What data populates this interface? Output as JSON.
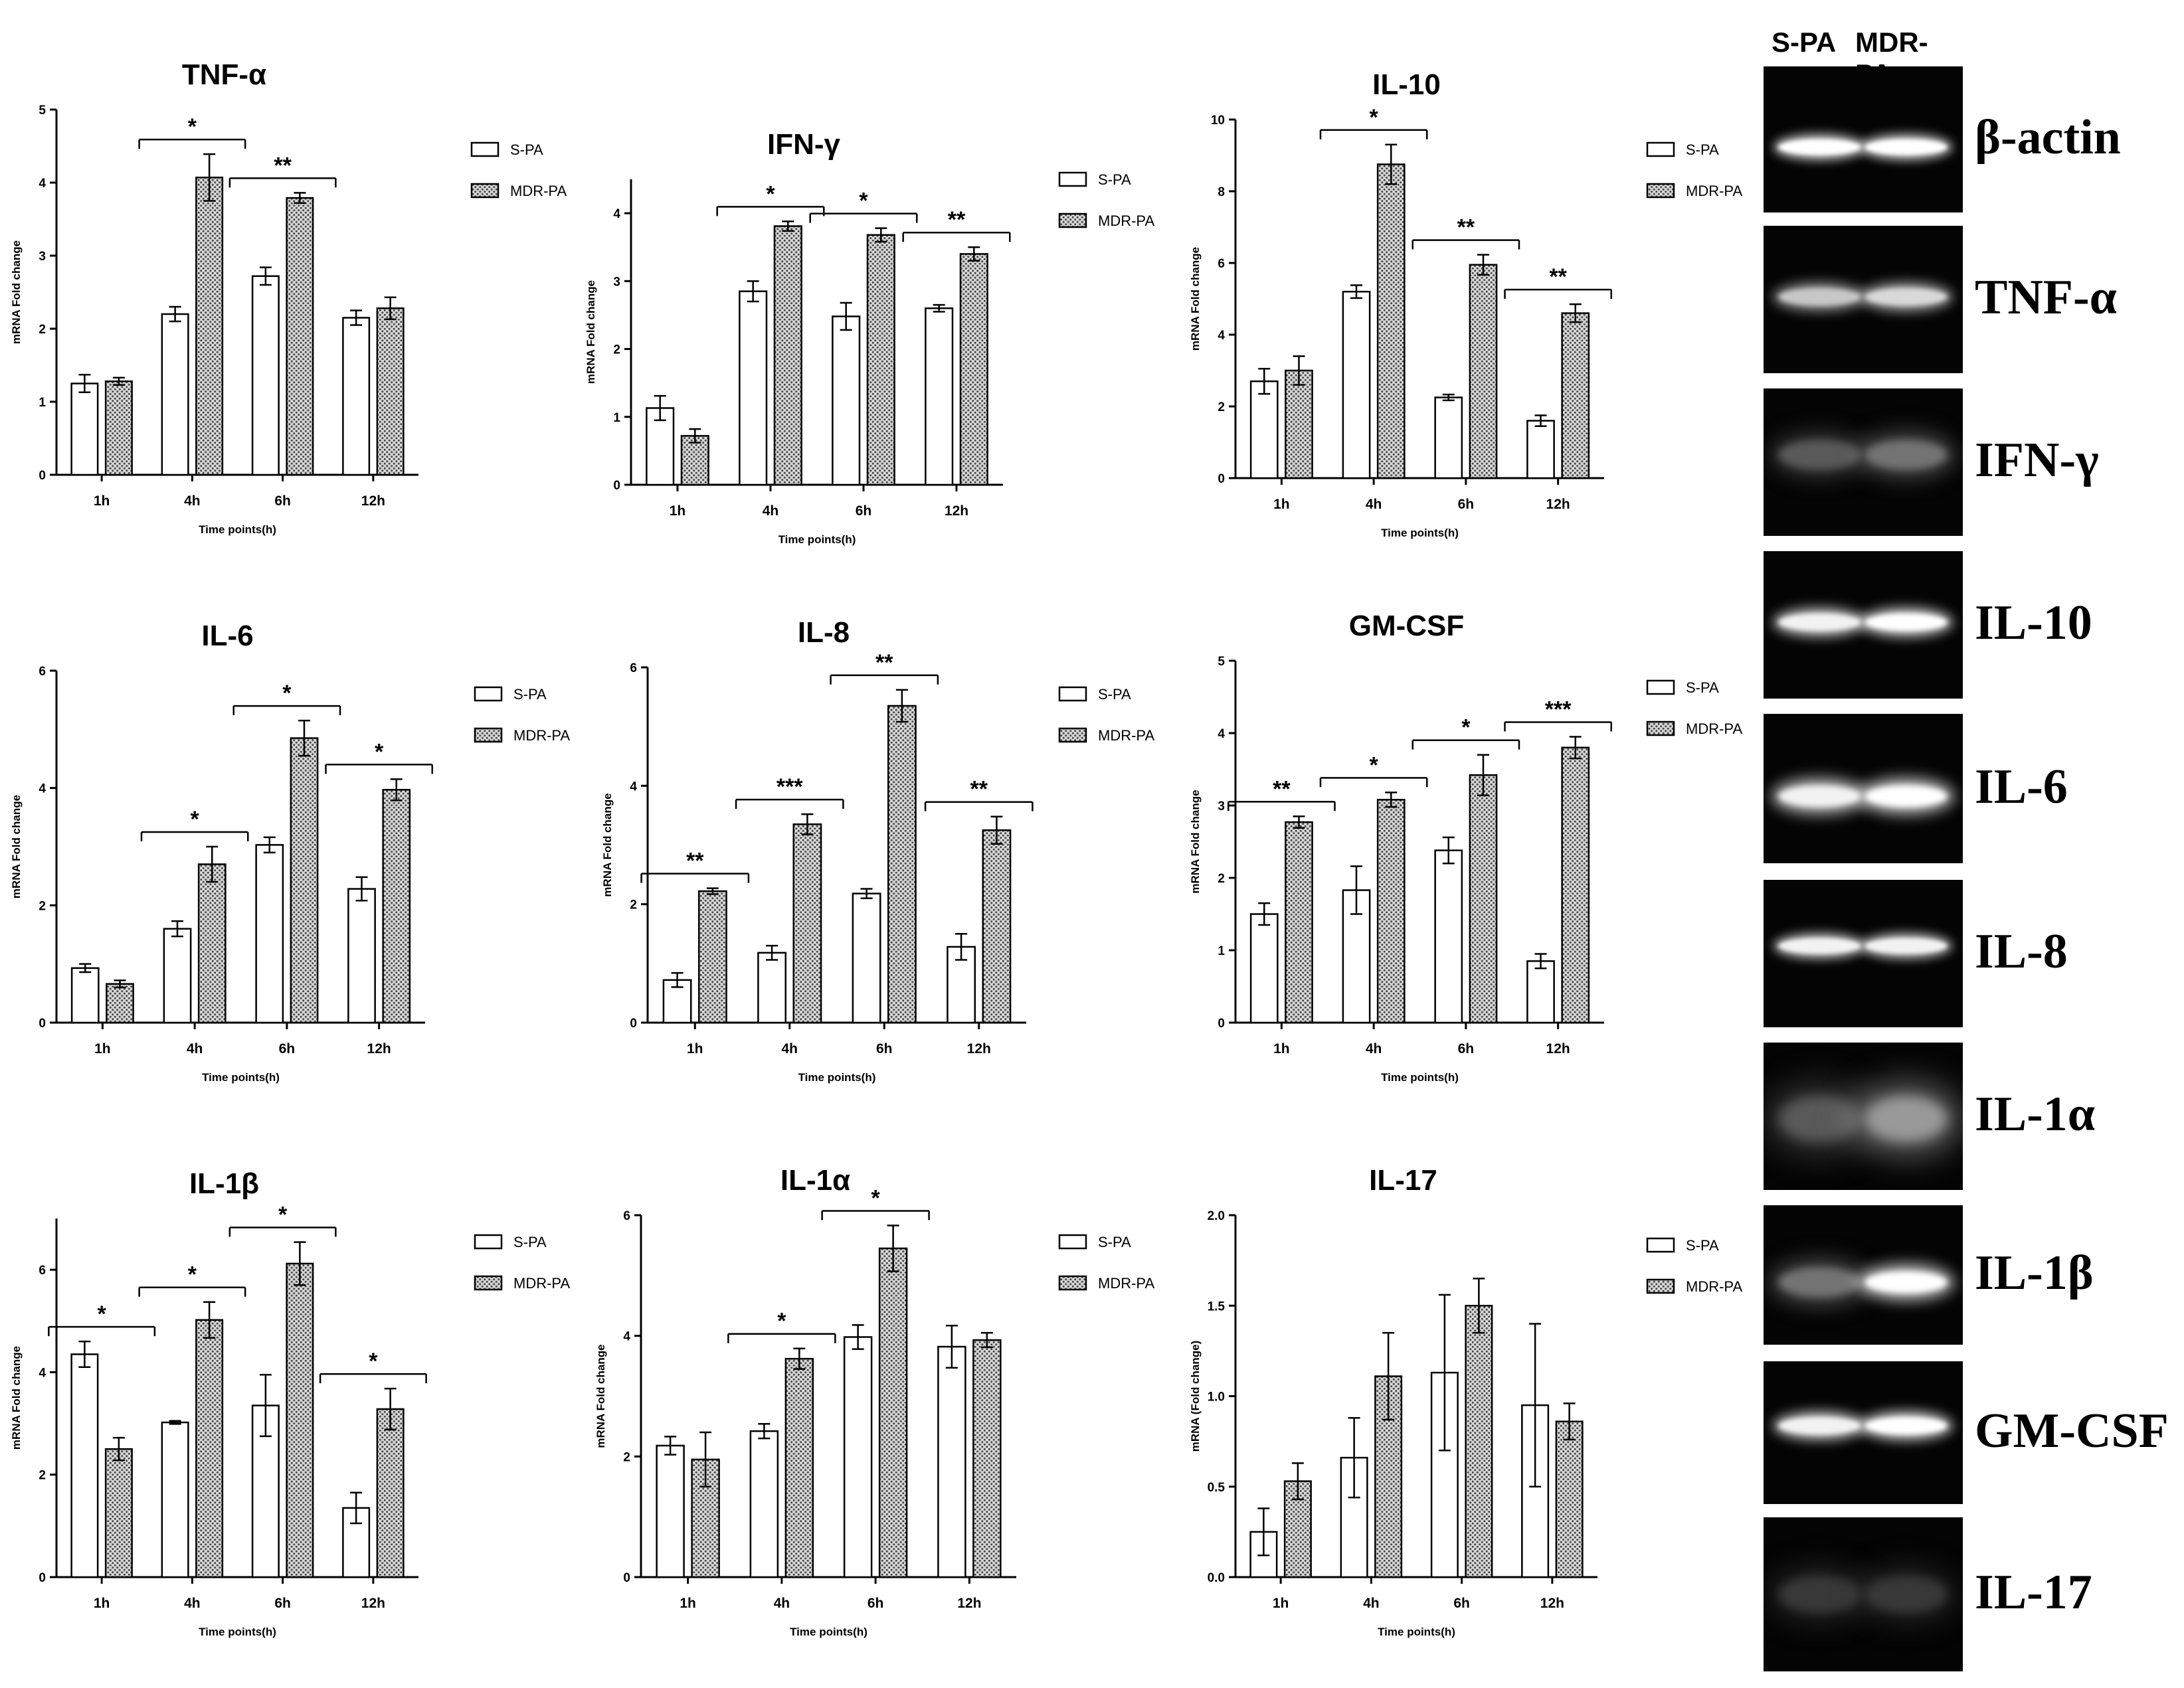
{
  "legend": [
    "S-PA",
    "MDR-PA"
  ],
  "chart_data": [
    {
      "type": "bar",
      "title": "TNF-α",
      "categories": [
        "1h",
        "4h",
        "6h",
        "12h"
      ],
      "xlabel": "Time points(h)",
      "ylabel": "mRNA Fold change",
      "ylim": [
        0,
        5
      ],
      "yticks": [
        "0",
        "1",
        "2",
        "3",
        "4",
        "5"
      ],
      "series": [
        {
          "name": "S-PA",
          "values": [
            1.25,
            2.2,
            2.72,
            2.15
          ],
          "errors": [
            0.12,
            0.1,
            0.12,
            0.1
          ]
        },
        {
          "name": "MDR-PA",
          "values": [
            1.28,
            4.07,
            3.79,
            2.28
          ],
          "errors": [
            0.05,
            0.32,
            0.07,
            0.15
          ]
        }
      ],
      "significance": [
        {
          "category": "4h",
          "label": "*"
        },
        {
          "category": "6h",
          "label": "**"
        }
      ]
    },
    {
      "type": "bar",
      "title": "IFN-γ",
      "categories": [
        "1h",
        "4h",
        "6h",
        "12h"
      ],
      "xlabel": "Time points(h)",
      "ylabel": "mRNA Fold change",
      "ylim": [
        0,
        4.5
      ],
      "yticks": [
        "0",
        "1",
        "2",
        "3",
        "4"
      ],
      "series": [
        {
          "name": "S-PA",
          "values": [
            1.13,
            2.85,
            2.48,
            2.6
          ],
          "errors": [
            0.18,
            0.15,
            0.2,
            0.05
          ]
        },
        {
          "name": "MDR-PA",
          "values": [
            0.72,
            3.81,
            3.68,
            3.4
          ],
          "errors": [
            0.1,
            0.07,
            0.1,
            0.1
          ]
        }
      ],
      "significance": [
        {
          "category": "4h",
          "label": "*"
        },
        {
          "category": "6h",
          "label": "*"
        },
        {
          "category": "12h",
          "label": "**"
        }
      ]
    },
    {
      "type": "bar",
      "title": "IL-10",
      "categories": [
        "1h",
        "4h",
        "6h",
        "12h"
      ],
      "xlabel": "Time points(h)",
      "ylabel": "mRNA Fold change",
      "ylim": [
        0,
        10
      ],
      "yticks": [
        "0",
        "2",
        "4",
        "6",
        "8",
        "10"
      ],
      "series": [
        {
          "name": "S-PA",
          "values": [
            2.7,
            5.2,
            2.25,
            1.6
          ],
          "errors": [
            0.35,
            0.18,
            0.08,
            0.15
          ]
        },
        {
          "name": "MDR-PA",
          "values": [
            3.0,
            8.75,
            5.95,
            4.6
          ],
          "errors": [
            0.4,
            0.55,
            0.28,
            0.25
          ]
        }
      ],
      "significance": [
        {
          "category": "4h",
          "label": "*"
        },
        {
          "category": "6h",
          "label": "**"
        },
        {
          "category": "12h",
          "label": "**"
        }
      ]
    },
    {
      "type": "bar",
      "title": "IL-6",
      "categories": [
        "1h",
        "4h",
        "6h",
        "12h"
      ],
      "xlabel": "Time points(h)",
      "ylabel": "mRNA Fold change",
      "ylim": [
        0,
        6
      ],
      "yticks": [
        "0",
        "2",
        "4",
        "6"
      ],
      "series": [
        {
          "name": "S-PA",
          "values": [
            0.93,
            1.6,
            3.03,
            2.28
          ],
          "errors": [
            0.07,
            0.13,
            0.13,
            0.2
          ]
        },
        {
          "name": "MDR-PA",
          "values": [
            0.66,
            2.7,
            4.85,
            3.97
          ],
          "errors": [
            0.06,
            0.3,
            0.3,
            0.18
          ]
        }
      ],
      "significance": [
        {
          "category": "4h",
          "label": "*"
        },
        {
          "category": "6h",
          "label": "*"
        },
        {
          "category": "12h",
          "label": "*"
        }
      ]
    },
    {
      "type": "bar",
      "title": "IL-8",
      "categories": [
        "1h",
        "4h",
        "6h",
        "12h"
      ],
      "xlabel": "Time points(h)",
      "ylabel": "mRNA Fold change",
      "ylim": [
        0,
        6
      ],
      "yticks": [
        "0",
        "2",
        "4",
        "6"
      ],
      "series": [
        {
          "name": "S-PA",
          "values": [
            0.72,
            1.18,
            2.18,
            1.28
          ],
          "errors": [
            0.12,
            0.12,
            0.08,
            0.22
          ]
        },
        {
          "name": "MDR-PA",
          "values": [
            2.22,
            3.35,
            5.35,
            3.25
          ],
          "errors": [
            0.05,
            0.17,
            0.27,
            0.23
          ]
        }
      ],
      "significance": [
        {
          "category": "1h",
          "label": "**"
        },
        {
          "category": "4h",
          "label": "***"
        },
        {
          "category": "6h",
          "label": "**"
        },
        {
          "category": "12h",
          "label": "**"
        }
      ]
    },
    {
      "type": "bar",
      "title": "GM-CSF",
      "categories": [
        "1h",
        "4h",
        "6h",
        "12h"
      ],
      "xlabel": "Time points(h)",
      "ylabel": "mRNA Fold change",
      "ylim": [
        0,
        5
      ],
      "yticks": [
        "0",
        "1",
        "2",
        "3",
        "4",
        "5"
      ],
      "series": [
        {
          "name": "S-PA",
          "values": [
            1.5,
            1.83,
            2.38,
            0.85
          ],
          "errors": [
            0.15,
            0.33,
            0.18,
            0.1
          ]
        },
        {
          "name": "MDR-PA",
          "values": [
            2.77,
            3.08,
            3.42,
            3.8
          ],
          "errors": [
            0.08,
            0.1,
            0.28,
            0.15
          ]
        }
      ],
      "significance": [
        {
          "category": "1h",
          "label": "**"
        },
        {
          "category": "4h",
          "label": "*"
        },
        {
          "category": "6h",
          "label": "*"
        },
        {
          "category": "12h",
          "label": "***"
        }
      ]
    },
    {
      "type": "bar",
      "title": "IL-1β",
      "categories": [
        "1h",
        "4h",
        "6h",
        "12h"
      ],
      "xlabel": "Time points(h)",
      "ylabel": "mRNA Fold change",
      "ylim": [
        0,
        7
      ],
      "yticks": [
        "0",
        "2",
        "4",
        "6"
      ],
      "series": [
        {
          "name": "S-PA",
          "values": [
            4.35,
            3.02,
            3.35,
            1.35
          ],
          "errors": [
            0.25,
            0.03,
            0.6,
            0.3
          ]
        },
        {
          "name": "MDR-PA",
          "values": [
            2.5,
            5.02,
            6.12,
            3.28
          ],
          "errors": [
            0.22,
            0.35,
            0.42,
            0.4
          ]
        }
      ],
      "significance": [
        {
          "category": "1h",
          "label": "*"
        },
        {
          "category": "4h",
          "label": "*"
        },
        {
          "category": "6h",
          "label": "*"
        },
        {
          "category": "12h",
          "label": "*"
        }
      ]
    },
    {
      "type": "bar",
      "title": "IL-1α",
      "categories": [
        "1h",
        "4h",
        "6h",
        "12h"
      ],
      "xlabel": "Time points(h)",
      "ylabel": "mRNA Fold change",
      "ylim": [
        0,
        6
      ],
      "yticks": [
        "0",
        "2",
        "4",
        "6"
      ],
      "series": [
        {
          "name": "S-PA",
          "values": [
            2.18,
            2.42,
            3.98,
            3.82
          ],
          "errors": [
            0.15,
            0.12,
            0.2,
            0.35
          ]
        },
        {
          "name": "MDR-PA",
          "values": [
            1.95,
            3.62,
            5.45,
            3.93
          ],
          "errors": [
            0.45,
            0.17,
            0.38,
            0.12
          ]
        }
      ],
      "significance": [
        {
          "category": "4h",
          "label": "*"
        },
        {
          "category": "6h",
          "label": "*"
        }
      ]
    },
    {
      "type": "bar",
      "title": "IL-17",
      "categories": [
        "1h",
        "4h",
        "6h",
        "12h"
      ],
      "xlabel": "Time points(h)",
      "ylabel": "mRNA (Fold change)",
      "ylim": [
        0,
        2.0
      ],
      "yticks": [
        "0.0",
        "0.5",
        "1.0",
        "1.5",
        "2.0"
      ],
      "series": [
        {
          "name": "S-PA",
          "values": [
            0.25,
            0.66,
            1.13,
            0.95
          ],
          "errors": [
            0.13,
            0.22,
            0.43,
            0.45
          ]
        },
        {
          "name": "MDR-PA",
          "values": [
            0.53,
            1.11,
            1.5,
            0.86
          ],
          "errors": [
            0.1,
            0.24,
            0.15,
            0.1
          ]
        }
      ],
      "significance": []
    }
  ],
  "gel": {
    "lanes": [
      "S-PA",
      "MDR-PA"
    ],
    "rows": [
      {
        "label": "β-actin",
        "intensity": [
          1.0,
          1.0
        ],
        "blur": [
          0.15,
          0.15
        ]
      },
      {
        "label": "TNF-α",
        "intensity": [
          0.78,
          0.85
        ],
        "blur": [
          0.2,
          0.2
        ]
      },
      {
        "label": "IFN-γ",
        "intensity": [
          0.35,
          0.45
        ],
        "blur": [
          0.5,
          0.5
        ]
      },
      {
        "label": "IL-10",
        "intensity": [
          0.95,
          1.0
        ],
        "blur": [
          0.2,
          0.2
        ]
      },
      {
        "label": "IL-6",
        "intensity": [
          0.95,
          1.0
        ],
        "blur": [
          0.3,
          0.3
        ]
      },
      {
        "label": "IL-8",
        "intensity": [
          0.95,
          0.95
        ],
        "blur": [
          0.15,
          0.15
        ]
      },
      {
        "label": "IL-1α",
        "intensity": [
          0.35,
          0.6
        ],
        "blur": [
          0.9,
          0.9
        ]
      },
      {
        "label": "IL-1β",
        "intensity": [
          0.45,
          1.0
        ],
        "blur": [
          0.5,
          0.3
        ]
      },
      {
        "label": "GM-CSF",
        "intensity": [
          0.95,
          1.0
        ],
        "blur": [
          0.2,
          0.2
        ]
      },
      {
        "label": "IL-17",
        "intensity": [
          0.22,
          0.22
        ],
        "blur": [
          0.7,
          0.7
        ]
      }
    ]
  }
}
